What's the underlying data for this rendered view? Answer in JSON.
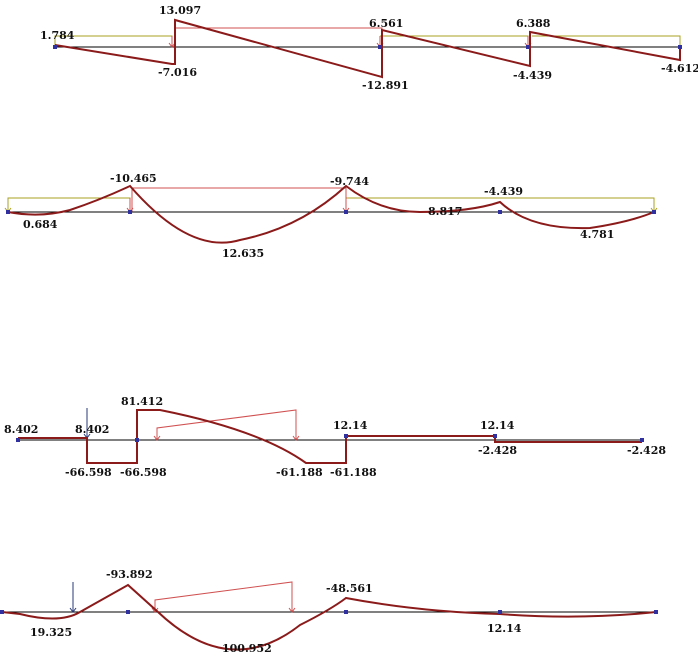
{
  "colors": {
    "diagram_line": "#8b1a1a",
    "load_line": "#d05050",
    "envelope": "#a8a020",
    "axis": "#000000",
    "node": "#3030a0",
    "arrow": "#2a3a7a"
  },
  "diagrams": [
    {
      "id": "shear-1",
      "labels": {
        "v1": "1.784",
        "v2": "13.097",
        "v3": "-7.016",
        "v4": "6.561",
        "v5": "-12.891",
        "v6": "6.388",
        "v7": "-4.439",
        "v8": "-4.612"
      }
    },
    {
      "id": "moment-1",
      "labels": {
        "v1": "-10.465",
        "v2": "0.684",
        "v3": "12.635",
        "v4": "-9.744",
        "v5": "8.817",
        "v6": "-4.439",
        "v7": "4.781"
      }
    },
    {
      "id": "shear-2",
      "labels": {
        "v1": "8.402",
        "v2": "8.402",
        "v3": "-66.598",
        "v4": "-66.598",
        "v5": "81.412",
        "v6": "-61.188",
        "v7": "-61.188",
        "v8": "12.14",
        "v9": "12.14",
        "v10": "-2.428",
        "v11": "-2.428"
      }
    },
    {
      "id": "moment-2",
      "labels": {
        "v1": "-93.892",
        "v2": "19.325",
        "v3": "100.952",
        "v4": "-48.561",
        "v5": "12.14"
      }
    }
  ]
}
